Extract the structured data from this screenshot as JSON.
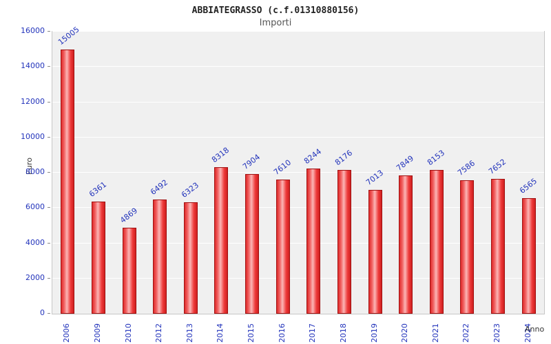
{
  "chart_data": {
    "type": "bar",
    "title": "ABBIATEGRASSO (c.f.01310880156)",
    "subtitle": "Importi",
    "xlabel": "Anno",
    "ylabel": "Euro",
    "categories": [
      "2006",
      "2009",
      "2010",
      "2012",
      "2013",
      "2014",
      "2015",
      "2016",
      "2017",
      "2018",
      "2019",
      "2020",
      "2021",
      "2022",
      "2023",
      "2024"
    ],
    "values": [
      15005,
      6361,
      4869,
      6492,
      6323,
      8318,
      7904,
      7610,
      8244,
      8176,
      7013,
      7849,
      8153,
      7586,
      7652,
      6565
    ],
    "ylim": [
      0,
      16000
    ],
    "ytick_step": 2000,
    "grid": true,
    "legend": "none",
    "bar_color": "#e02a2a",
    "bar_highlight": "#fbb6b6",
    "bar_outline": "#a01010",
    "tick_label_color": "#2233bb",
    "plot_bg": "#f0f0f0",
    "grid_color": "#ffffff"
  }
}
